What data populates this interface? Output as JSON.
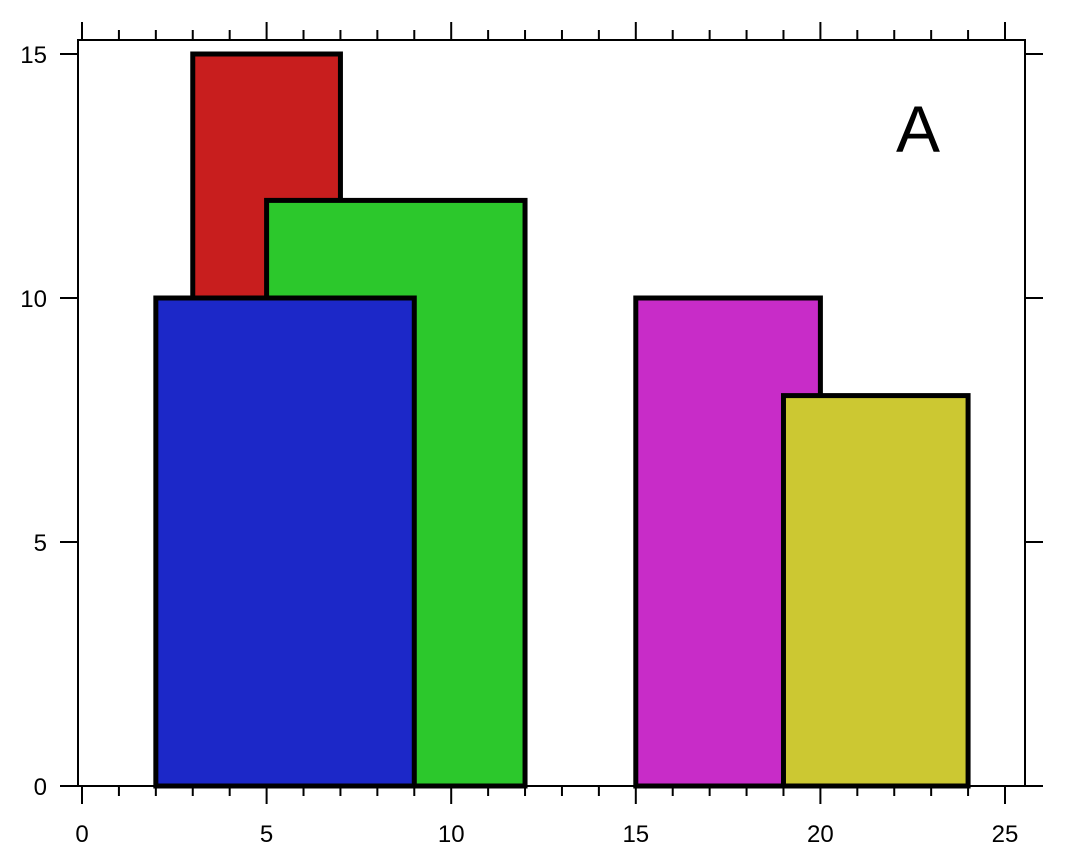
{
  "chart_data": {
    "type": "bar",
    "title": "",
    "xlabel": "",
    "ylabel": "",
    "panel_label": "A",
    "xlim": [
      0,
      25
    ],
    "ylim": [
      0,
      15
    ],
    "x_ticks": [
      0,
      5,
      10,
      15,
      20,
      25
    ],
    "x_tick_labels": [
      "0",
      "5",
      "10",
      "15",
      "20",
      "25"
    ],
    "y_ticks": [
      0,
      5,
      10,
      15
    ],
    "y_tick_labels": [
      "0",
      "5",
      "10",
      "15"
    ],
    "grid": false,
    "bars": [
      {
        "x0": 3,
        "x1": 7,
        "height": 15,
        "color": "#c81e1e"
      },
      {
        "x0": 5,
        "x1": 12,
        "height": 12,
        "color": "#2cc82c"
      },
      {
        "x0": 2,
        "x1": 9,
        "height": 10,
        "color": "#1c28c8"
      },
      {
        "x0": 15,
        "x1": 20,
        "height": 10,
        "color": "#c82cc8"
      },
      {
        "x0": 19,
        "x1": 24,
        "height": 8,
        "color": "#ccc832"
      }
    ]
  }
}
